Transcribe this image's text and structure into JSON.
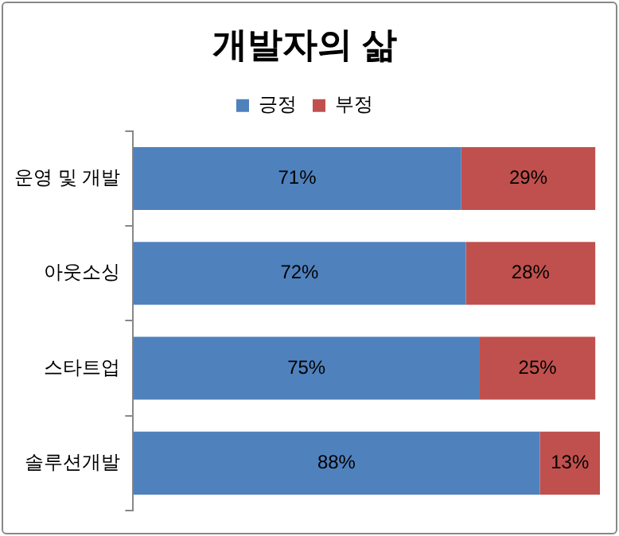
{
  "chart_data": {
    "type": "bar",
    "title": "개발자의 삶",
    "orientation": "horizontal",
    "stacked": true,
    "legend": "top",
    "tick_labels": "y",
    "grid": false,
    "categories": [
      "운영 및 개발",
      "아웃소싱",
      "스타트업",
      "솔루션개발"
    ],
    "series": [
      {
        "name": "긍정",
        "color": "#4f81bd",
        "values": [
          71,
          72,
          75,
          88
        ],
        "value_labels": [
          "71%",
          "72%",
          "75%",
          "88%"
        ]
      },
      {
        "name": "부정",
        "color": "#c0504d",
        "values": [
          29,
          28,
          25,
          13
        ],
        "value_labels": [
          "29%",
          "28%",
          "25%",
          "13%"
        ]
      }
    ]
  }
}
